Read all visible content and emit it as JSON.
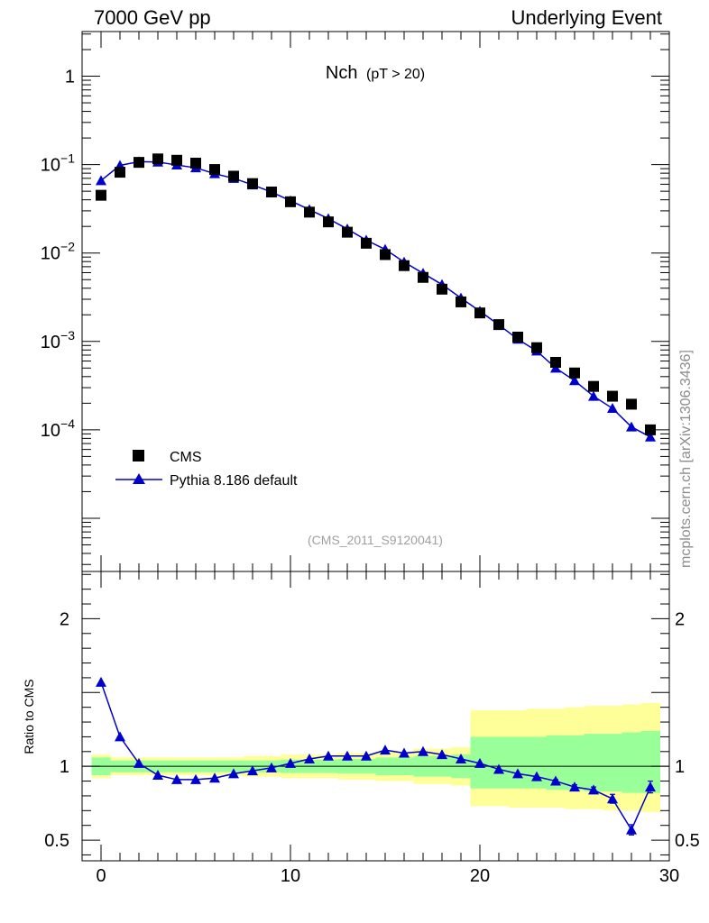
{
  "header": {
    "left": "7000 GeV pp",
    "right": "Underlying Event",
    "side_label": "mcplots.cern.ch [arXiv:1306.3436]"
  },
  "colors": {
    "data": "#000000",
    "mc": "#0000cc",
    "band_inner": "#99ff99",
    "band_outer": "#ffff99"
  },
  "chart_data": [
    {
      "type": "scatter",
      "title": "Nch",
      "title_suffix": "(pT > 20)",
      "annotation": "(CMS_2011_S9120041)",
      "xlabel": "",
      "ylabel": "",
      "xlim": [
        -1,
        30
      ],
      "ylim": [
        2.5e-06,
        3.2
      ],
      "yscale": "log",
      "yticks": [
        {
          "v": 1,
          "label": "1"
        },
        {
          "v": 0.1,
          "base": "10",
          "exp": "−1"
        },
        {
          "v": 0.01,
          "base": "10",
          "exp": "−2"
        },
        {
          "v": 0.001,
          "base": "10",
          "exp": "−3"
        },
        {
          "v": 0.0001,
          "base": "10",
          "exp": "−4"
        }
      ],
      "legend": {
        "placement": "bottom-left"
      },
      "series": [
        {
          "name": "CMS",
          "marker": "square",
          "x": [
            0,
            1,
            2,
            3,
            4,
            5,
            6,
            7,
            8,
            9,
            10,
            11,
            12,
            13,
            14,
            15,
            16,
            17,
            18,
            19,
            20,
            21,
            22,
            23,
            24,
            25,
            26,
            27,
            28,
            29
          ],
          "y": [
            0.045,
            0.082,
            0.106,
            0.116,
            0.112,
            0.104,
            0.088,
            0.074,
            0.061,
            0.049,
            0.038,
            0.029,
            0.0225,
            0.0172,
            0.0129,
            0.0096,
            0.0072,
            0.0053,
            0.0039,
            0.0028,
            0.0021,
            0.00155,
            0.00112,
            0.00085,
            0.00058,
            0.00044,
            0.00031,
            0.00024,
            0.000195,
            0.0001
          ]
        },
        {
          "name": "Pythia 8.186 default",
          "marker": "triangle",
          "x": [
            0,
            1,
            2,
            3,
            4,
            5,
            6,
            7,
            8,
            9,
            10,
            11,
            12,
            13,
            14,
            15,
            16,
            17,
            18,
            19,
            20,
            21,
            22,
            23,
            24,
            25,
            26,
            27,
            28,
            29
          ],
          "y": [
            0.066,
            0.098,
            0.108,
            0.107,
            0.099,
            0.092,
            0.079,
            0.07,
            0.059,
            0.049,
            0.039,
            0.031,
            0.0245,
            0.0187,
            0.014,
            0.011,
            0.0079,
            0.0059,
            0.0044,
            0.0031,
            0.0022,
            0.00154,
            0.00106,
            0.00078,
            0.0005,
            0.00036,
            0.00024,
            0.000175,
            0.000108,
            8.3e-05
          ]
        }
      ]
    },
    {
      "type": "line",
      "ylabel": "Ratio to CMS",
      "xlim": [
        -1,
        30
      ],
      "ylim": [
        0.36,
        2.32
      ],
      "xticks": [
        0,
        10,
        20,
        30
      ],
      "yticks": [
        0.5,
        1,
        2
      ],
      "reference_line": 1,
      "band_edges": [
        -0.5,
        0.5,
        1.5,
        2.5,
        3.5,
        4.5,
        5.5,
        6.5,
        7.5,
        8.5,
        9.5,
        10.5,
        11.5,
        12.5,
        13.5,
        14.5,
        15.5,
        16.5,
        17.5,
        18.5,
        19.5,
        20.5,
        21.5,
        22.5,
        23.5,
        24.5,
        25.5,
        26.5,
        27.5,
        28.5,
        29.5
      ],
      "band_inner": [
        [
          0.94,
          1.06
        ],
        [
          0.96,
          1.04
        ],
        [
          0.96,
          1.04
        ],
        [
          0.96,
          1.04
        ],
        [
          0.96,
          1.04
        ],
        [
          0.96,
          1.04
        ],
        [
          0.96,
          1.04
        ],
        [
          0.96,
          1.04
        ],
        [
          0.96,
          1.04
        ],
        [
          0.96,
          1.04
        ],
        [
          0.955,
          1.045
        ],
        [
          0.955,
          1.045
        ],
        [
          0.955,
          1.045
        ],
        [
          0.95,
          1.05
        ],
        [
          0.95,
          1.05
        ],
        [
          0.94,
          1.06
        ],
        [
          0.94,
          1.06
        ],
        [
          0.93,
          1.07
        ],
        [
          0.93,
          1.07
        ],
        [
          0.92,
          1.08
        ],
        [
          0.85,
          1.2
        ],
        [
          0.85,
          1.2
        ],
        [
          0.85,
          1.2
        ],
        [
          0.85,
          1.2
        ],
        [
          0.84,
          1.21
        ],
        [
          0.84,
          1.21
        ],
        [
          0.83,
          1.22
        ],
        [
          0.83,
          1.22
        ],
        [
          0.82,
          1.23
        ],
        [
          0.82,
          1.24
        ]
      ],
      "band_outer": [
        [
          0.92,
          1.08
        ],
        [
          0.94,
          1.06
        ],
        [
          0.94,
          1.06
        ],
        [
          0.94,
          1.06
        ],
        [
          0.94,
          1.06
        ],
        [
          0.94,
          1.06
        ],
        [
          0.94,
          1.06
        ],
        [
          0.94,
          1.06
        ],
        [
          0.93,
          1.07
        ],
        [
          0.93,
          1.07
        ],
        [
          0.92,
          1.08
        ],
        [
          0.92,
          1.08
        ],
        [
          0.92,
          1.08
        ],
        [
          0.91,
          1.09
        ],
        [
          0.91,
          1.09
        ],
        [
          0.9,
          1.1
        ],
        [
          0.9,
          1.1
        ],
        [
          0.88,
          1.12
        ],
        [
          0.88,
          1.12
        ],
        [
          0.87,
          1.13
        ],
        [
          0.73,
          1.38
        ],
        [
          0.73,
          1.38
        ],
        [
          0.72,
          1.38
        ],
        [
          0.72,
          1.39
        ],
        [
          0.72,
          1.39
        ],
        [
          0.71,
          1.4
        ],
        [
          0.71,
          1.41
        ],
        [
          0.7,
          1.41
        ],
        [
          0.7,
          1.42
        ],
        [
          0.69,
          1.43
        ]
      ],
      "series": [
        {
          "name": "Pythia 8.186 default",
          "x": [
            0,
            1,
            2,
            3,
            4,
            5,
            6,
            7,
            8,
            9,
            10,
            11,
            12,
            13,
            14,
            15,
            16,
            17,
            18,
            19,
            20,
            21,
            22,
            23,
            24,
            25,
            26,
            27,
            28,
            29
          ],
          "y": [
            1.57,
            1.2,
            1.02,
            0.94,
            0.91,
            0.91,
            0.92,
            0.95,
            0.97,
            0.99,
            1.02,
            1.05,
            1.07,
            1.07,
            1.07,
            1.11,
            1.09,
            1.1,
            1.08,
            1.05,
            1.02,
            0.98,
            0.95,
            0.93,
            0.9,
            0.86,
            0.84,
            0.78,
            0.57,
            0.86
          ],
          "err": [
            0,
            0,
            0,
            0,
            0,
            0,
            0,
            0,
            0,
            0,
            0,
            0,
            0,
            0,
            0,
            0,
            0,
            0,
            0,
            0,
            0,
            0,
            0,
            0,
            0.01,
            0.015,
            0.02,
            0.03,
            0.035,
            0.04
          ]
        }
      ]
    }
  ]
}
